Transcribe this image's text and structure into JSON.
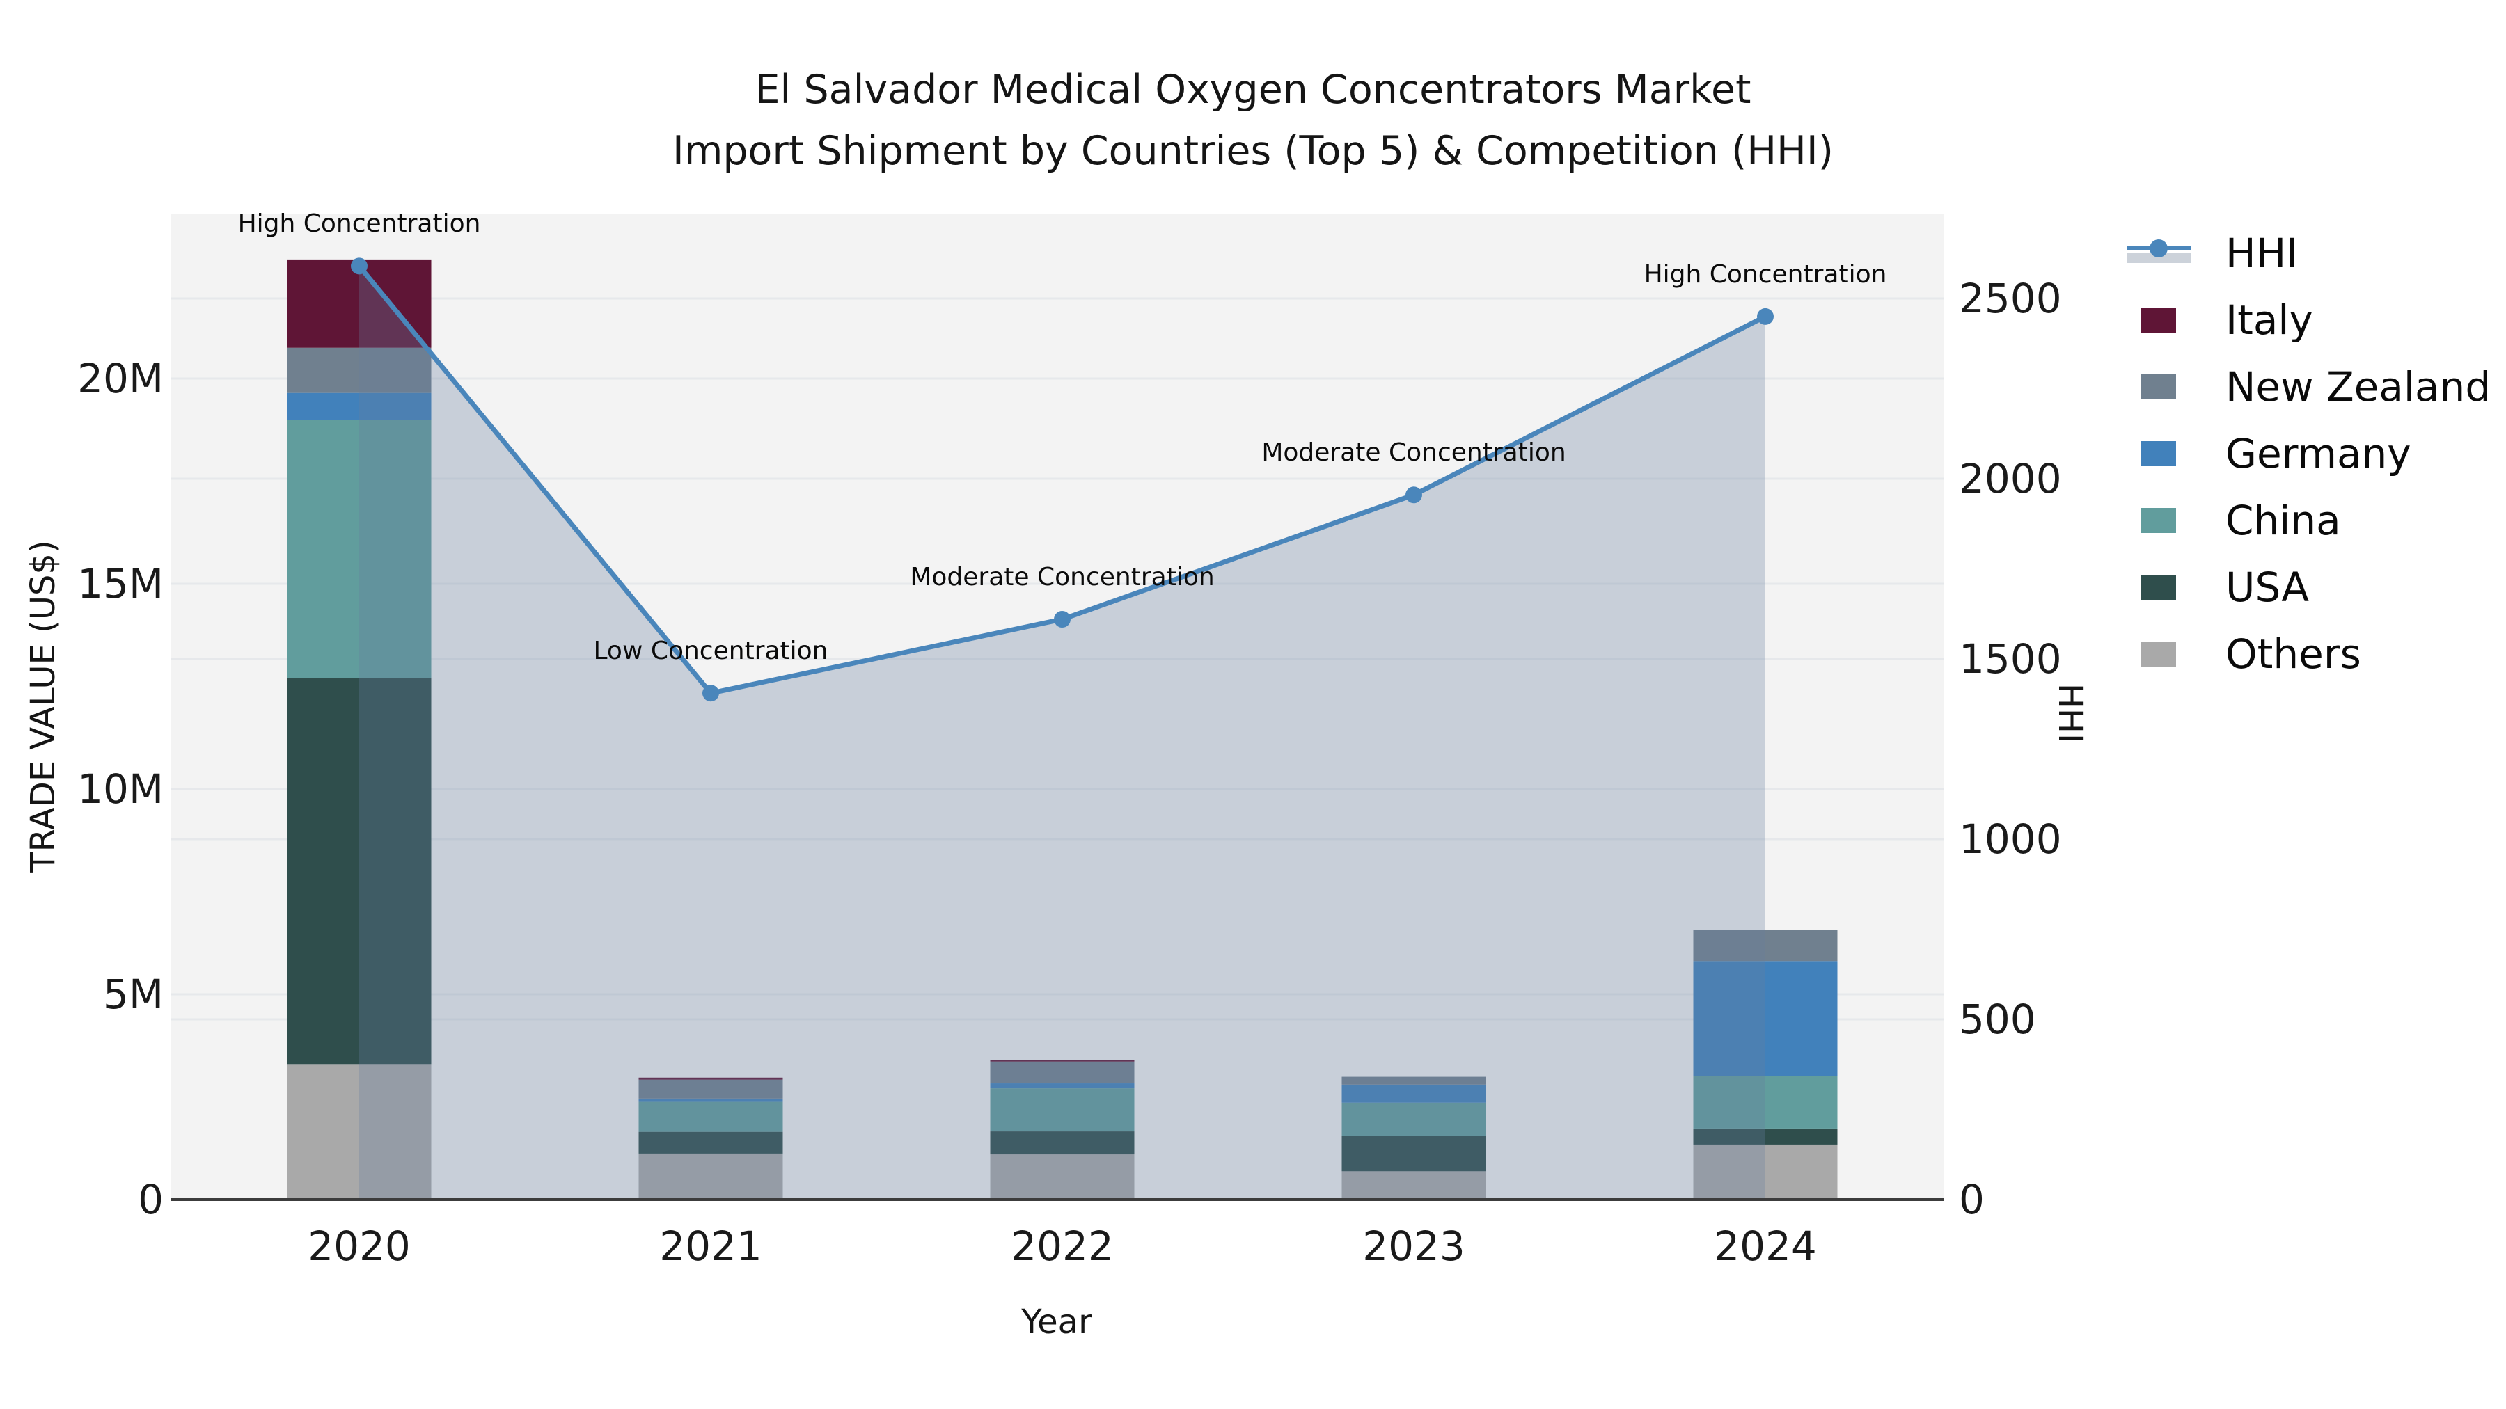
{
  "title": {
    "line1": "El Salvador Medical Oxygen Concentrators Market",
    "line2": "Import Shipment by Countries (Top 5) & Competition (HHI)"
  },
  "axes": {
    "x": {
      "label": "Year",
      "ticks": [
        "2020",
        "2021",
        "2022",
        "2023",
        "2024"
      ]
    },
    "y_left": {
      "label": "TRADE VALUE (US$)",
      "ticks": [
        "0",
        "5M",
        "10M",
        "15M",
        "20M"
      ],
      "tick_values_m": [
        0,
        5,
        10,
        15,
        20
      ]
    },
    "y_right": {
      "label": "HHI",
      "ticks": [
        "0",
        "500",
        "1000",
        "1500",
        "2000",
        "2500"
      ],
      "tick_values": [
        0,
        500,
        1000,
        1500,
        2000,
        2500
      ]
    }
  },
  "legend": {
    "items": [
      {
        "label": "HHI",
        "type": "line",
        "color": "#4a86bb"
      },
      {
        "label": "Italy",
        "type": "patch",
        "color": "#5f1536"
      },
      {
        "label": "New Zealand",
        "type": "patch",
        "color": "#70808f"
      },
      {
        "label": "Germany",
        "type": "patch",
        "color": "#4181bb"
      },
      {
        "label": "China",
        "type": "patch",
        "color": "#619d9d"
      },
      {
        "label": "USA",
        "type": "patch",
        "color": "#2f4e4c"
      },
      {
        "label": "Others",
        "type": "patch",
        "color": "#a9a9a9"
      }
    ]
  },
  "chart_data": {
    "type": "bar",
    "subtype": "stacked bars with overlaid line and area fill (dual axis)",
    "categories": [
      "2020",
      "2021",
      "2022",
      "2023",
      "2024"
    ],
    "bar_value_unit": "USD millions",
    "series": [
      {
        "name": "Others",
        "color": "#a9a9a9",
        "values": [
          3.3,
          1.12,
          1.1,
          0.69,
          1.34
        ]
      },
      {
        "name": "USA",
        "color": "#2f4e4c",
        "values": [
          9.4,
          0.53,
          0.56,
          0.86,
          0.39
        ]
      },
      {
        "name": "China",
        "color": "#619d9d",
        "values": [
          6.3,
          0.73,
          1.05,
          0.81,
          1.27
        ]
      },
      {
        "name": "Germany",
        "color": "#4181bb",
        "values": [
          0.65,
          0.08,
          0.12,
          0.44,
          2.81
        ]
      },
      {
        "name": "New Zealand",
        "color": "#70808f",
        "values": [
          1.1,
          0.46,
          0.53,
          0.19,
          0.76
        ]
      },
      {
        "name": "Italy",
        "color": "#5f1536",
        "values": [
          2.15,
          0.05,
          0.03,
          0.0,
          0.0
        ]
      }
    ],
    "stack_order_note": "bottom to top: Others, USA, China, Germany, New Zealand, Italy",
    "bar_totals_m": [
      22.9,
      2.97,
      3.39,
      2.99,
      6.57
    ],
    "line": {
      "name": "HHI",
      "color": "#4a86bb",
      "fill_color": "rgba(104,126,158,0.30)",
      "values": [
        2590,
        1405,
        1610,
        1955,
        2450
      ]
    },
    "annotations": [
      {
        "x": "2020",
        "text": "High Concentration"
      },
      {
        "x": "2021",
        "text": "Low Concentration"
      },
      {
        "x": "2022",
        "text": "Moderate Concentration"
      },
      {
        "x": "2023",
        "text": "Moderate Concentration"
      },
      {
        "x": "2024",
        "text": "High Concentration"
      }
    ],
    "xlabel": "Year",
    "ylabel_left": "TRADE VALUE (US$)",
    "ylabel_right": "HHI",
    "y_left_range_m": [
      0,
      24
    ],
    "y_right_range": [
      0,
      2736
    ],
    "grid": true,
    "legend_position": "right"
  },
  "colors": {
    "plot_background": "#f3f3f3",
    "figure_background": "#ffffff",
    "gridline": "#e6e8eb",
    "axis_line": "#3c3c3c",
    "hhi_line": "#4a86bb",
    "area_fill": "rgba(104,126,158,0.30)"
  }
}
